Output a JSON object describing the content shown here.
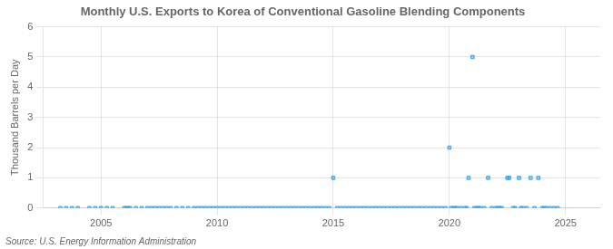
{
  "chart_data": {
    "type": "scatter",
    "title": "Monthly U.S. Exports to Korea of Conventional Gasoline Blending Components",
    "y_label": "Thousand Barrels per Day",
    "annotations": [
      "Source: U.S. Energy Information Administration"
    ],
    "x": [
      2003.25,
      2003.5,
      2003.75,
      2004.0,
      2004.5,
      2004.75,
      2005.0,
      2005.25,
      2005.5,
      2006.0,
      2006.08,
      2006.17,
      2006.25,
      2006.5,
      2006.75,
      2007.0,
      2007.17,
      2007.33,
      2007.5,
      2007.67,
      2007.83,
      2008.0,
      2008.25,
      2008.5,
      2008.75,
      2009.0,
      2009.17,
      2009.33,
      2009.5,
      2009.67,
      2009.83,
      2010.0,
      2010.17,
      2010.33,
      2010.5,
      2010.67,
      2010.83,
      2011.0,
      2011.17,
      2011.33,
      2011.5,
      2011.67,
      2011.83,
      2012.0,
      2012.17,
      2012.33,
      2012.5,
      2012.67,
      2012.83,
      2013.0,
      2013.17,
      2013.33,
      2013.5,
      2013.67,
      2013.83,
      2014.0,
      2014.17,
      2014.33,
      2014.5,
      2014.67,
      2014.83,
      2015.0,
      2015.17,
      2015.33,
      2015.5,
      2015.67,
      2015.83,
      2016.0,
      2016.17,
      2016.33,
      2016.5,
      2016.67,
      2016.83,
      2017.0,
      2017.17,
      2017.33,
      2017.5,
      2017.67,
      2017.83,
      2018.0,
      2018.17,
      2018.33,
      2018.5,
      2018.67,
      2018.83,
      2019.0,
      2019.17,
      2019.33,
      2019.5,
      2019.67,
      2019.83,
      2020.0,
      2020.08,
      2020.17,
      2020.25,
      2020.33,
      2020.5,
      2020.67,
      2020.75,
      2020.83,
      2021.0,
      2021.08,
      2021.17,
      2021.25,
      2021.33,
      2021.5,
      2021.67,
      2021.83,
      2022.0,
      2022.08,
      2022.17,
      2022.25,
      2022.5,
      2022.58,
      2022.75,
      2022.83,
      2023.0,
      2023.08,
      2023.17,
      2023.33,
      2023.5,
      2023.67,
      2023.83,
      2024.0,
      2024.08,
      2024.17,
      2024.33,
      2024.5,
      2024.67
    ],
    "values": [
      0,
      0,
      0,
      0,
      0,
      0,
      0,
      0,
      0,
      0,
      0,
      0,
      0,
      0,
      0,
      0,
      0,
      0,
      0,
      0,
      0,
      0,
      0,
      0,
      0,
      0,
      0,
      0,
      0,
      0,
      0,
      0,
      0,
      0,
      0,
      0,
      0,
      0,
      0,
      0,
      0,
      0,
      0,
      0,
      0,
      0,
      0,
      0,
      0,
      0,
      0,
      0,
      0,
      0,
      0,
      0,
      0,
      0,
      0,
      0,
      0,
      1,
      0,
      0,
      0,
      0,
      0,
      0,
      0,
      0,
      0,
      0,
      0,
      0,
      0,
      0,
      0,
      0,
      0,
      0,
      0,
      0,
      0,
      0,
      0,
      0,
      0,
      0,
      0,
      0,
      0,
      2,
      0,
      0,
      0,
      0,
      0,
      0,
      0,
      1,
      5,
      0,
      0,
      0,
      0,
      0,
      1,
      0,
      0,
      0,
      0,
      0,
      1,
      1,
      0,
      0,
      1,
      0,
      0,
      0,
      1,
      0,
      1,
      0,
      0,
      0,
      0,
      0,
      0
    ],
    "xlim": [
      2002.5,
      2026.5
    ],
    "ylim": [
      0,
      6
    ],
    "xticks": [
      2005,
      2010,
      2015,
      2020,
      2025
    ],
    "yticks": [
      0,
      1,
      2,
      3,
      4,
      5,
      6
    ],
    "marker": "square",
    "grid": true
  }
}
